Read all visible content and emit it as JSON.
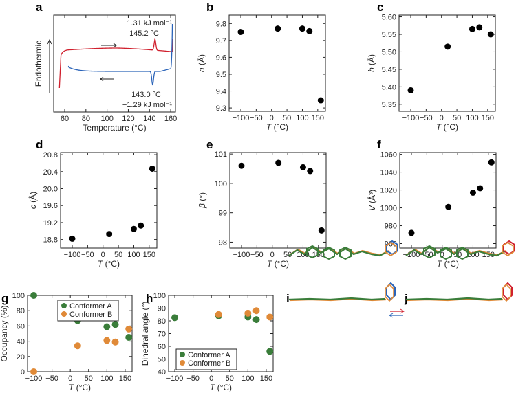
{
  "panel_labels": [
    "a",
    "b",
    "c",
    "d",
    "e",
    "f",
    "g",
    "h",
    "i",
    "j"
  ],
  "colors": {
    "heating": "#d0202e",
    "cooling": "#2a63b8",
    "dot": "#000000",
    "conformerA": "#3a7d3a",
    "conformerB": "#e08a38"
  },
  "chart_data": [
    {
      "panel": "a",
      "type": "line",
      "title": "",
      "xlabel": "Temperature (°C)",
      "ylabel": "Endothermic",
      "xlim": [
        49.6,
        164.5
      ],
      "xticks": [
        60,
        80,
        100,
        120,
        140,
        160
      ],
      "series": [
        {
          "name": "heating",
          "direction": "→",
          "peak_T": 145.2
        },
        {
          "name": "cooling",
          "direction": "←",
          "peak_T": 143.0
        }
      ],
      "annotations": [
        "1.31 kJ mol⁻¹",
        "145.2 °C",
        "143.0 °C",
        "−1.29 kJ mol⁻¹"
      ]
    },
    {
      "panel": "b",
      "type": "scatter",
      "xlabel": "T (°C)",
      "ylabel": "a (Å)",
      "xlim": [
        -138,
        175
      ],
      "xticks": [
        -100,
        -50,
        0,
        50,
        100,
        150
      ],
      "ylim": [
        9.28,
        9.85
      ],
      "yticks": [
        9.3,
        9.4,
        9.5,
        9.6,
        9.7,
        9.8
      ],
      "ydec": 1,
      "x": [
        -100,
        20,
        100,
        123,
        160
      ],
      "y": [
        9.75,
        9.77,
        9.77,
        9.755,
        9.345
      ]
    },
    {
      "panel": "c",
      "type": "scatter",
      "xlabel": "T (°C)",
      "ylabel": "b (Å)",
      "xlim": [
        -138,
        175
      ],
      "xticks": [
        -100,
        -50,
        0,
        50,
        100,
        150
      ],
      "ylim": [
        5.33,
        5.605
      ],
      "yticks": [
        5.35,
        5.4,
        5.45,
        5.5,
        5.55,
        5.6
      ],
      "ydec": 2,
      "x": [
        -100,
        20,
        100,
        123,
        160
      ],
      "y": [
        5.39,
        5.515,
        5.565,
        5.57,
        5.55
      ]
    },
    {
      "panel": "d",
      "type": "scatter",
      "xlabel": "T (°C)",
      "ylabel": "c (Å)",
      "xlim": [
        -138,
        175
      ],
      "xticks": [
        -100,
        -50,
        0,
        50,
        100,
        150
      ],
      "ylim": [
        18.6,
        20.85
      ],
      "yticks": [
        18.8,
        19.2,
        19.6,
        20.0,
        20.4,
        20.8
      ],
      "ydec": 1,
      "x": [
        -100,
        20,
        100,
        123,
        160
      ],
      "y": [
        18.82,
        18.93,
        19.05,
        19.13,
        20.47
      ]
    },
    {
      "panel": "e",
      "type": "scatter",
      "xlabel": "T (°C)",
      "ylabel": "β (°)",
      "xlim": [
        -138,
        175
      ],
      "xticks": [
        -100,
        -50,
        0,
        50,
        100,
        150
      ],
      "ylim": [
        97.8,
        101.05
      ],
      "yticks": [
        98,
        99,
        100,
        101
      ],
      "ydec": 0,
      "x": [
        -100,
        20,
        100,
        123,
        160
      ],
      "y": [
        100.6,
        100.7,
        100.55,
        100.42,
        98.4
      ]
    },
    {
      "panel": "f",
      "type": "scatter",
      "xlabel": "T (°C)",
      "ylabel": "V (Å³)",
      "xlim": [
        -138,
        175
      ],
      "xticks": [
        -100,
        -50,
        0,
        50,
        100,
        150
      ],
      "ylim": [
        955,
        1062
      ],
      "yticks": [
        960,
        980,
        1000,
        1020,
        1040,
        1060
      ],
      "ydec": 0,
      "x": [
        -100,
        20,
        100,
        123,
        160
      ],
      "y": [
        972,
        1001,
        1017,
        1022,
        1051
      ]
    },
    {
      "panel": "g",
      "type": "scatter",
      "xlabel": "T (°C)",
      "ylabel": "Occupancy (%)",
      "xlim": [
        -117,
        169
      ],
      "xticks": [
        -100,
        -50,
        0,
        50,
        100,
        150
      ],
      "ylim": [
        0,
        100
      ],
      "yticks": [
        0,
        20,
        40,
        60,
        80,
        100
      ],
      "ydec": 0,
      "legend": "top-right",
      "series": [
        {
          "name": "Conformer A",
          "x": [
            -100,
            20,
            100,
            123,
            160
          ],
          "y": [
            100,
            67,
            59,
            62,
            45
          ]
        },
        {
          "name": "Conformer B",
          "x": [
            -100,
            20,
            100,
            123,
            160
          ],
          "y": [
            0,
            34,
            41,
            39,
            56
          ]
        }
      ]
    },
    {
      "panel": "h",
      "type": "scatter",
      "xlabel": "T (°C)",
      "ylabel": "Dihedral angle (°)",
      "xlim": [
        -117,
        169
      ],
      "xticks": [
        -100,
        -50,
        0,
        50,
        100,
        150
      ],
      "ylim": [
        40,
        100
      ],
      "yticks": [
        40,
        50,
        60,
        70,
        80,
        90,
        100
      ],
      "ydec": 0,
      "legend": "bottom-left",
      "series": [
        {
          "name": "Conformer A",
          "x": [
            -100,
            20,
            100,
            123,
            160
          ],
          "y": [
            82.5,
            84,
            83,
            81,
            56
          ]
        },
        {
          "name": "Conformer B",
          "x": [
            20,
            100,
            123,
            160
          ],
          "y": [
            85,
            86,
            88,
            83
          ]
        }
      ]
    }
  ]
}
